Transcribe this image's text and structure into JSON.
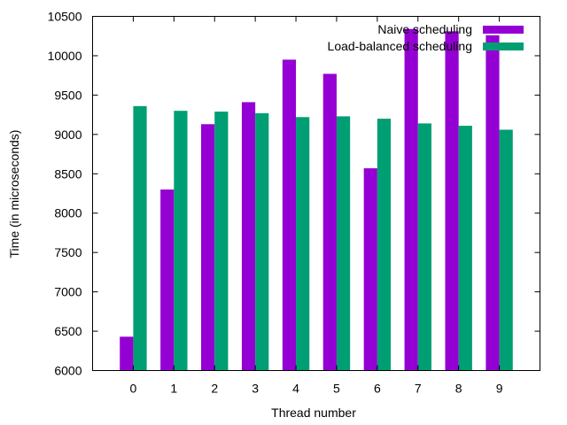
{
  "chart_data": {
    "type": "bar",
    "xlabel": "Thread number",
    "ylabel": "Time (in microseconds)",
    "ylim": [
      6000,
      10500
    ],
    "yticks": [
      6000,
      6500,
      7000,
      7500,
      8000,
      8500,
      9000,
      9500,
      10000,
      10500
    ],
    "categories": [
      "0",
      "1",
      "2",
      "3",
      "4",
      "5",
      "6",
      "7",
      "8",
      "9"
    ],
    "legend_position": "top-right",
    "grid": false,
    "series": [
      {
        "name": "Naive scheduling",
        "color": "#9400d3",
        "values": [
          6430,
          8300,
          9130,
          9410,
          9950,
          9770,
          8570,
          10340,
          10310,
          10260
        ]
      },
      {
        "name": "Load-balanced scheduling",
        "color": "#009e73",
        "values": [
          9360,
          9300,
          9290,
          9270,
          9220,
          9230,
          9200,
          9140,
          9110,
          9060
        ]
      }
    ]
  }
}
